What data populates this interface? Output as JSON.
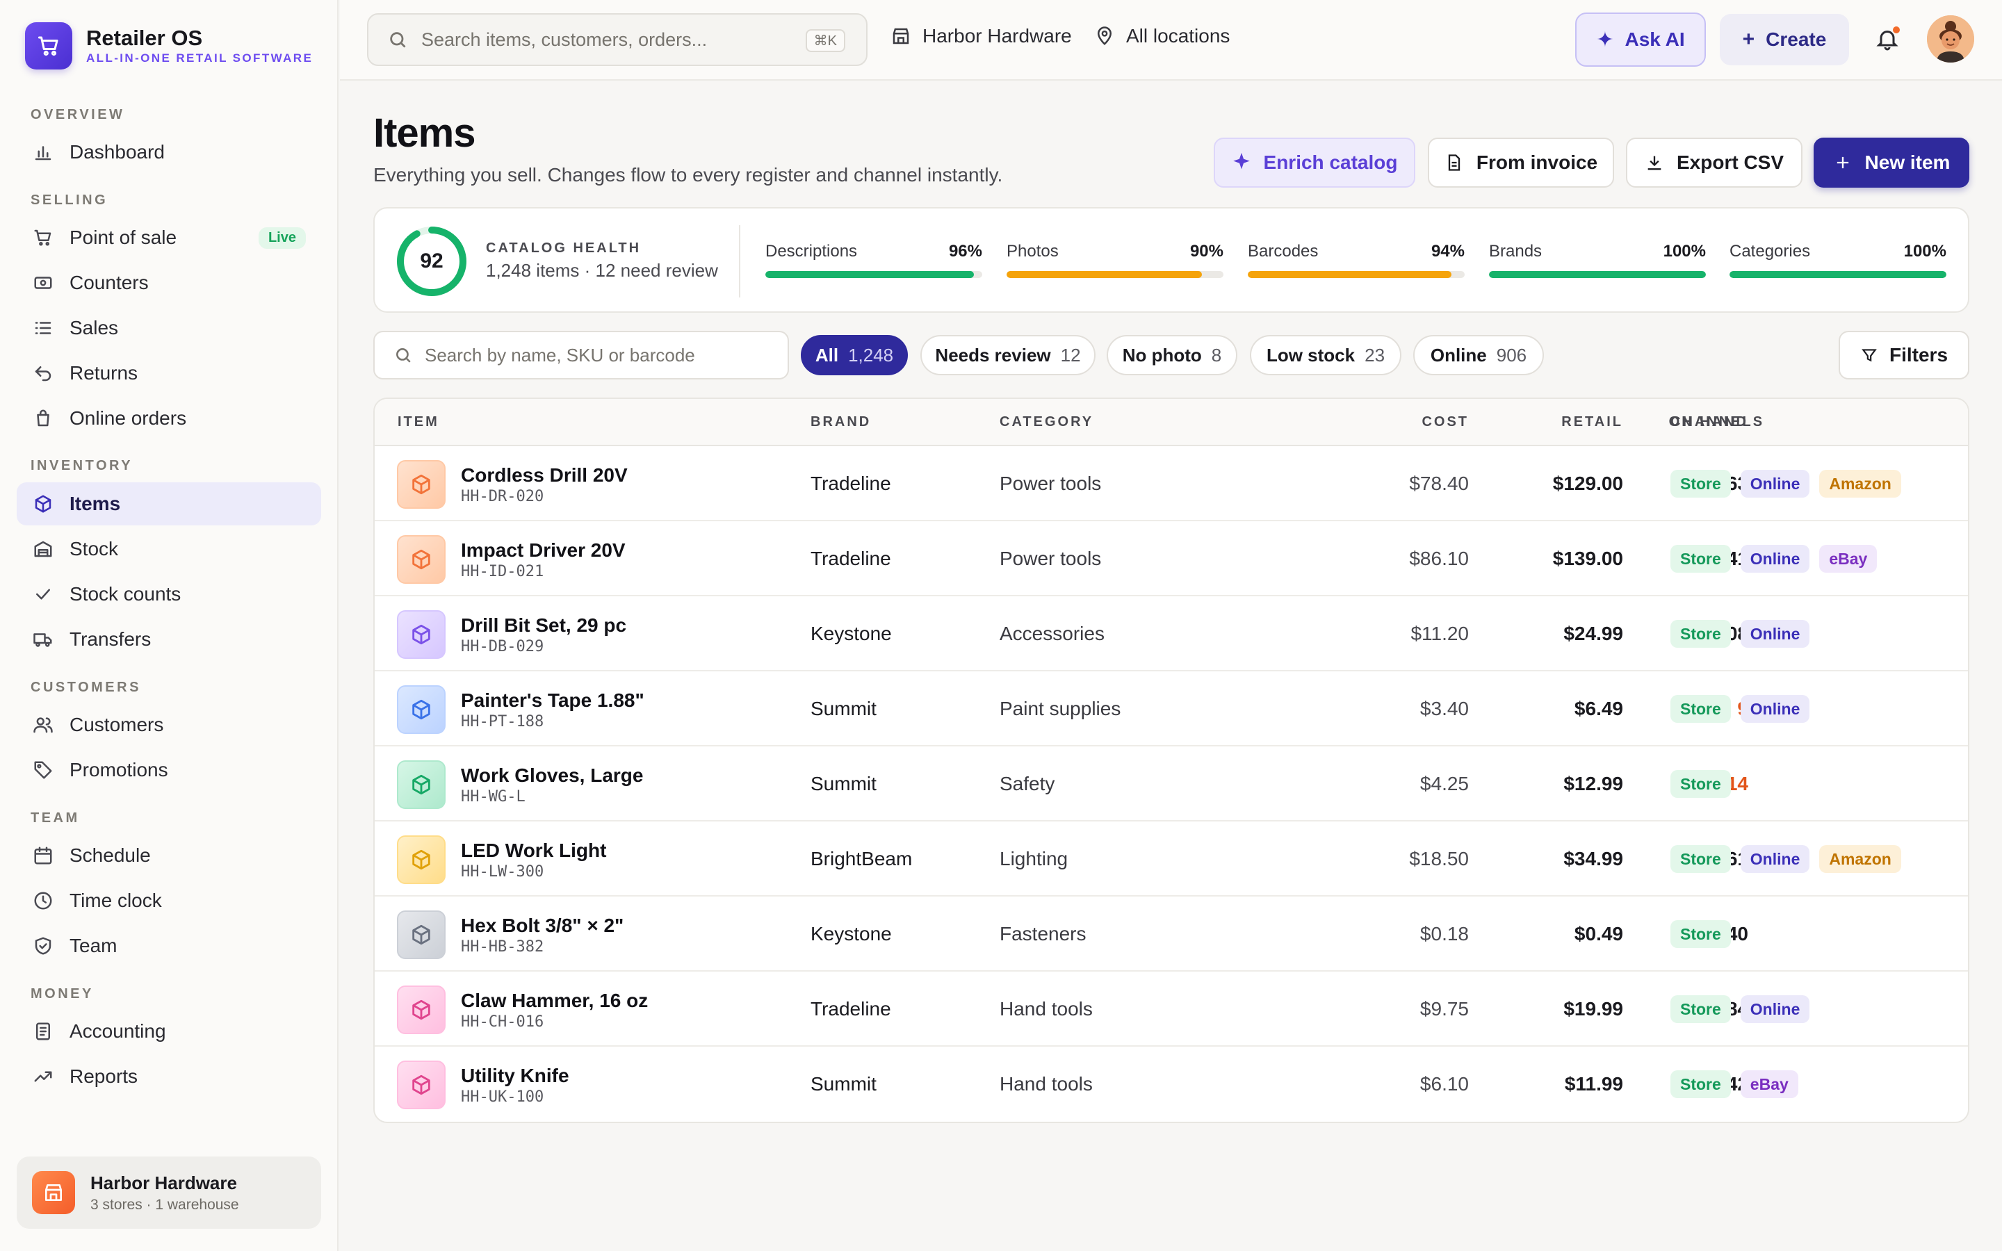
{
  "app": {
    "name": "Retailer OS",
    "tagline": "ALL-IN-ONE RETAIL SOFTWARE"
  },
  "sidebar": {
    "sections": [
      {
        "label": "OVERVIEW"
      },
      {
        "label": "SELLING"
      },
      {
        "label": "INVENTORY"
      },
      {
        "label": "CUSTOMERS"
      },
      {
        "label": "TEAM"
      },
      {
        "label": "MONEY"
      }
    ],
    "items": [
      {
        "label": "Dashboard",
        "icon": "bar-chart-icon"
      },
      {
        "label": "Point of sale",
        "icon": "cart-icon",
        "badge": "Live"
      },
      {
        "label": "Counters",
        "icon": "register-icon"
      },
      {
        "label": "Sales",
        "icon": "list-icon"
      },
      {
        "label": "Returns",
        "icon": "return-arrow-icon"
      },
      {
        "label": "Online orders",
        "icon": "bag-icon"
      },
      {
        "label": "Items",
        "icon": "box-icon",
        "active": true
      },
      {
        "label": "Stock",
        "icon": "warehouse-icon"
      },
      {
        "label": "Stock counts",
        "icon": "check-icon"
      },
      {
        "label": "Transfers",
        "icon": "truck-icon"
      },
      {
        "label": "Customers",
        "icon": "users-icon"
      },
      {
        "label": "Promotions",
        "icon": "tag-icon"
      },
      {
        "label": "Schedule",
        "icon": "calendar-icon"
      },
      {
        "label": "Time clock",
        "icon": "clock-icon"
      },
      {
        "label": "Team",
        "icon": "shield-icon"
      },
      {
        "label": "Accounting",
        "icon": "ledger-icon"
      },
      {
        "label": "Reports",
        "icon": "trend-icon"
      }
    ],
    "store": {
      "name": "Harbor Hardware",
      "sub": "3 stores · 1 warehouse"
    }
  },
  "header": {
    "search_placeholder": "Search items, customers, orders...",
    "search_shortcut": "⌘K",
    "store_label": "Harbor Hardware",
    "location_label": "All locations",
    "ask_ai_label": "Ask AI",
    "create_label": "Create"
  },
  "page": {
    "title": "Items",
    "subtitle": "Everything you sell. Changes flow to every register and channel instantly.",
    "actions": {
      "enrich": "Enrich catalog",
      "invoice": "From invoice",
      "export": "Export CSV",
      "new_item": "New item"
    }
  },
  "health": {
    "score": "92",
    "score_fraction": 0.92,
    "label": "CATALOG HEALTH",
    "sub": "1,248 items · 12 need review",
    "metrics": [
      {
        "name": "Descriptions",
        "pct": "96%",
        "value": 0.96,
        "color": "#16b36a"
      },
      {
        "name": "Photos",
        "pct": "90%",
        "value": 0.9,
        "color": "#f5a30a"
      },
      {
        "name": "Barcodes",
        "pct": "94%",
        "value": 0.94,
        "color": "#f5a30a"
      },
      {
        "name": "Brands",
        "pct": "100%",
        "value": 1.0,
        "color": "#16b36a"
      },
      {
        "name": "Categories",
        "pct": "100%",
        "value": 1.0,
        "color": "#16b36a"
      }
    ]
  },
  "filters": {
    "search_placeholder": "Search by name, SKU or barcode",
    "chips": [
      {
        "label": "All",
        "count": "1,248",
        "active": true
      },
      {
        "label": "Needs review",
        "count": "12"
      },
      {
        "label": "No photo",
        "count": "8"
      },
      {
        "label": "Low stock",
        "count": "23"
      },
      {
        "label": "Online",
        "count": "906"
      }
    ],
    "filters_label": "Filters"
  },
  "table": {
    "columns": {
      "item": "ITEM",
      "brand": "BRAND",
      "category": "CATEGORY",
      "cost": "COST",
      "retail": "RETAIL",
      "on_hand": "ON HAND",
      "channels": "CHANNELS"
    },
    "rows": [
      {
        "name": "Cordless Drill 20V",
        "sku": "HH-DR-020",
        "brand": "Tradeline",
        "category": "Power tools",
        "cost": "$78.40",
        "retail": "$129.00",
        "on_hand": "63",
        "low": false,
        "thumb_color": "orange",
        "channels": [
          "Store",
          "Online",
          "Amazon"
        ]
      },
      {
        "name": "Impact Driver 20V",
        "sku": "HH-ID-021",
        "brand": "Tradeline",
        "category": "Power tools",
        "cost": "$86.10",
        "retail": "$139.00",
        "on_hand": "41",
        "low": false,
        "thumb_color": "orange",
        "channels": [
          "Store",
          "Online",
          "eBay"
        ]
      },
      {
        "name": "Drill Bit Set, 29 pc",
        "sku": "HH-DB-029",
        "brand": "Keystone",
        "category": "Accessories",
        "cost": "$11.20",
        "retail": "$24.99",
        "on_hand": "108",
        "low": false,
        "thumb_color": "purple",
        "channels": [
          "Store",
          "Online"
        ]
      },
      {
        "name": "Painter's Tape 1.88\"",
        "sku": "HH-PT-188",
        "brand": "Summit",
        "category": "Paint supplies",
        "cost": "$3.40",
        "retail": "$6.49",
        "on_hand": "9",
        "low": true,
        "thumb_color": "blue",
        "channels": [
          "Store",
          "Online"
        ]
      },
      {
        "name": "Work Gloves, Large",
        "sku": "HH-WG-L",
        "brand": "Summit",
        "category": "Safety",
        "cost": "$4.25",
        "retail": "$12.99",
        "on_hand": "14",
        "low": true,
        "thumb_color": "green",
        "channels": [
          "Store"
        ]
      },
      {
        "name": "LED Work Light",
        "sku": "HH-LW-300",
        "brand": "BrightBeam",
        "category": "Lighting",
        "cost": "$18.50",
        "retail": "$34.99",
        "on_hand": "61",
        "low": false,
        "thumb_color": "yellow",
        "channels": [
          "Store",
          "Online",
          "Amazon"
        ]
      },
      {
        "name": "Hex Bolt 3/8\" × 2\"",
        "sku": "HH-HB-382",
        "brand": "Keystone",
        "category": "Fasteners",
        "cost": "$0.18",
        "retail": "$0.49",
        "on_hand": "1,640",
        "low": false,
        "thumb_color": "gray",
        "channels": [
          "Store"
        ]
      },
      {
        "name": "Claw Hammer, 16 oz",
        "sku": "HH-CH-016",
        "brand": "Tradeline",
        "category": "Hand tools",
        "cost": "$9.75",
        "retail": "$19.99",
        "on_hand": "84",
        "low": false,
        "thumb_color": "pink",
        "channels": [
          "Store",
          "Online"
        ]
      },
      {
        "name": "Utility Knife",
        "sku": "HH-UK-100",
        "brand": "Summit",
        "category": "Hand tools",
        "cost": "$6.10",
        "retail": "$11.99",
        "on_hand": "142",
        "low": false,
        "thumb_color": "pink",
        "channels": [
          "Store",
          "eBay"
        ]
      }
    ]
  }
}
